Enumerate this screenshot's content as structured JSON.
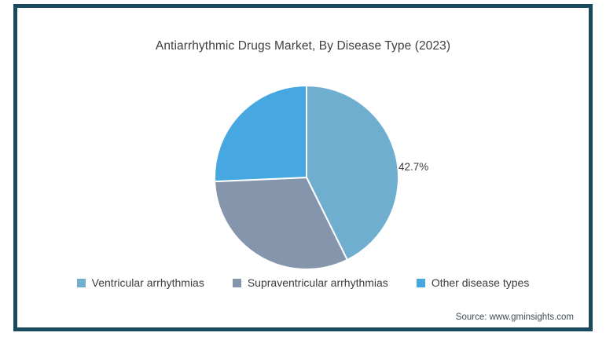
{
  "header": {
    "title": "Antiarrhythmic Drugs Market, By Disease Type (2023)"
  },
  "footer": {
    "source": "Source: www.gminsights.com"
  },
  "frame": {
    "border_color": "#1A4A5F"
  },
  "chart_data": {
    "type": "pie",
    "title": "Antiarrhythmic Drugs Market, By Disease Type (2023)",
    "labels": [
      "Ventricular arrhythmias",
      "Supraventricular arrhythmias",
      "Other disease types"
    ],
    "values": [
      42.7,
      31.6,
      25.7
    ],
    "colors": [
      "#6FAECF",
      "#8495AC",
      "#47A7E0"
    ],
    "data_labels": [
      "42.7%",
      "",
      ""
    ],
    "annotation": {
      "text": "42.7%",
      "slice": "Ventricular arrhythmias",
      "position": "outside-right"
    },
    "start_angle_deg": 0,
    "direction": "clockwise",
    "slice_stroke_color": "#FFFFFF",
    "legend_position": "bottom",
    "source": "Source: www.gminsights.com"
  }
}
